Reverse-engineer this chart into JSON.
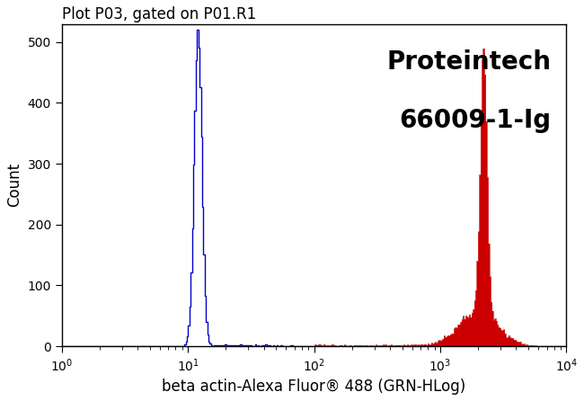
{
  "title": "Plot P03, gated on P01.R1",
  "xlabel": "beta actin-Alexa Fluor® 488 (GRN-HLog)",
  "ylabel": "Count",
  "watermark_line1": "Proteintech",
  "watermark_line2": "66009-1-Ig",
  "xlim": [
    1.0,
    10000.0
  ],
  "ylim": [
    0,
    530
  ],
  "yticks": [
    0,
    100,
    200,
    300,
    400,
    500
  ],
  "blue_color": "#0000cc",
  "red_color": "#cc0000",
  "background_color": "#ffffff",
  "title_fontsize": 12,
  "label_fontsize": 12,
  "watermark_fontsize": 20
}
